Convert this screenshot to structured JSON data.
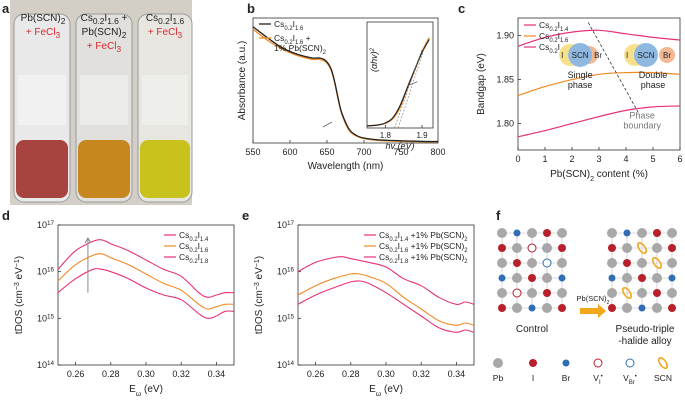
{
  "panels": {
    "a": {
      "label": "a",
      "vials": [
        {
          "line1": "Pb(SCN)",
          "sub1": "2",
          "line2": "",
          "line3": "+ FeCl",
          "sub3": "3",
          "liquid": "#a8443f"
        },
        {
          "line1": "Cs",
          "sub1": "0.2",
          "line1b": "I",
          "sub1b": "1.6",
          "plus": " +",
          "line2": "Pb(SCN)",
          "sub2": "2",
          "line3": "+ FeCl",
          "sub3": "3",
          "liquid": "#c7871f"
        },
        {
          "line1": "Cs",
          "sub1": "0.2",
          "line1b": "I",
          "sub1b": "1.6",
          "line2": "",
          "line3": "+ FeCl",
          "sub3": "3",
          "liquid": "#c9c21c"
        }
      ]
    },
    "b": {
      "label": "b"
    },
    "c": {
      "label": "c"
    },
    "d": {
      "label": "d"
    },
    "e": {
      "label": "e"
    },
    "f": {
      "label": "f",
      "control": "Control",
      "alloy": "Pseudo-triple-halide alloy",
      "arrow_label": "Pb(SCN)",
      "arrow_label_sub": "2",
      "legend": [
        "Pb",
        "I",
        "Br",
        "V",
        "V",
        "SCN"
      ],
      "legend_sub": [
        "",
        "",
        "",
        "I",
        "Br",
        ""
      ],
      "legend_sup": [
        "",
        "",
        "",
        "•",
        "•",
        ""
      ]
    }
  },
  "chart_data": [
    {
      "id": "b",
      "type": "line",
      "title": "",
      "xlabel": "Wavelength (nm)",
      "ylabel": "Absorbance (a.u.)",
      "xlim": [
        550,
        800
      ],
      "xticks": [
        550,
        600,
        650,
        700,
        750,
        800
      ],
      "legend": [
        {
          "name": "Cs0.2I1.6",
          "color": "#222222"
        },
        {
          "name": "Cs0.2I1.6 + 1% Pb(SCN)2",
          "color": "#f08a24"
        }
      ],
      "series": [
        {
          "name": "Cs0.2I1.6",
          "x": [
            550,
            570,
            590,
            610,
            630,
            640,
            648,
            655,
            660,
            665,
            670,
            680,
            690,
            700,
            720,
            740,
            760,
            780,
            800
          ],
          "y": [
            0.93,
            0.84,
            0.76,
            0.71,
            0.68,
            0.68,
            0.66,
            0.6,
            0.5,
            0.36,
            0.24,
            0.11,
            0.06,
            0.04,
            0.025,
            0.02,
            0.016,
            0.013,
            0.012
          ]
        },
        {
          "name": "Cs0.2I1.6 + 1% Pb(SCN)2",
          "x": [
            550,
            570,
            590,
            610,
            630,
            640,
            648,
            655,
            660,
            665,
            670,
            680,
            690,
            700,
            720,
            740,
            760,
            780,
            800
          ],
          "y": [
            0.91,
            0.82,
            0.75,
            0.7,
            0.67,
            0.67,
            0.65,
            0.59,
            0.49,
            0.35,
            0.23,
            0.1,
            0.055,
            0.035,
            0.02,
            0.015,
            0.012,
            0.01,
            0.009
          ]
        }
      ],
      "inset": {
        "xlabel": "hv (eV)",
        "ylabel": "(αhv)2",
        "xticks": [
          1.8,
          1.9
        ],
        "xlim": [
          1.75,
          1.93
        ],
        "series": [
          {
            "name": "Cs0.2I1.6",
            "x": [
              1.75,
              1.78,
              1.8,
              1.82,
              1.84,
              1.86,
              1.88,
              1.9,
              1.92
            ],
            "y": [
              0.02,
              0.03,
              0.05,
              0.1,
              0.22,
              0.4,
              0.58,
              0.75,
              0.88
            ]
          },
          {
            "name": "Cs0.2I1.6 + 1% Pb(SCN)2",
            "x": [
              1.75,
              1.78,
              1.8,
              1.82,
              1.84,
              1.86,
              1.88,
              1.9,
              1.92
            ],
            "y": [
              0.02,
              0.03,
              0.045,
              0.09,
              0.2,
              0.39,
              0.57,
              0.76,
              0.9
            ]
          }
        ]
      }
    },
    {
      "id": "c",
      "type": "line",
      "xlabel": "Pb(SCN)2 content (%)",
      "ylabel": "Bandgap (eV)",
      "xlim": [
        0,
        6
      ],
      "ylim": [
        1.77,
        1.92
      ],
      "xticks": [
        0,
        1,
        2,
        3,
        4,
        5,
        6
      ],
      "yticks": [
        1.8,
        1.85,
        1.9
      ],
      "legend": [
        "Cs0.2I1.4",
        "Cs0.2I1.6",
        "Cs0.2I1.8"
      ],
      "series": [
        {
          "name": "Cs0.2I1.4",
          "x": [
            0,
            1,
            2,
            3,
            4,
            5,
            6
          ],
          "y": [
            1.888,
            1.898,
            1.904,
            1.906,
            1.902,
            1.898,
            1.895
          ]
        },
        {
          "name": "Cs0.2I1.6",
          "x": [
            0,
            1,
            2,
            3,
            4,
            5,
            6
          ],
          "y": [
            1.832,
            1.842,
            1.85,
            1.856,
            1.858,
            1.858,
            1.856
          ]
        },
        {
          "name": "Cs0.2I1.8",
          "x": [
            0,
            1,
            2,
            3,
            4,
            5,
            6
          ],
          "y": [
            1.785,
            1.792,
            1.8,
            1.808,
            1.815,
            1.819,
            1.82
          ]
        }
      ],
      "annotations": {
        "single": "Single phase",
        "double": "Double phase",
        "boundary": "Phase boundary",
        "circles": [
          "I",
          "SCN",
          "Br"
        ]
      }
    },
    {
      "id": "d",
      "type": "line",
      "xlabel": "Eω (eV)",
      "ylabel": "tDOS (cm-3 eV-1)",
      "xlim": [
        0.25,
        0.35
      ],
      "xticks": [
        0.26,
        0.28,
        0.3,
        0.32,
        0.34
      ],
      "ylim_log": [
        14,
        17
      ],
      "legend": [
        "Cs0.2I1.4",
        "Cs0.2I1.6",
        "Cs0.2I1.8"
      ],
      "series": [
        {
          "name": "Cs0.2I1.4",
          "x": [
            0.25,
            0.26,
            0.27,
            0.275,
            0.28,
            0.29,
            0.3,
            0.31,
            0.32,
            0.33,
            0.335,
            0.34,
            0.345,
            0.35
          ],
          "y": [
            15.55,
            15.85,
            16.05,
            16.05,
            16.0,
            15.85,
            15.65,
            15.5,
            15.4,
            15.1,
            15.0,
            15.05,
            15.15,
            15.15
          ]
        },
        {
          "name": "Cs0.2I1.6",
          "x": [
            0.25,
            0.26,
            0.27,
            0.275,
            0.28,
            0.29,
            0.3,
            0.31,
            0.32,
            0.33,
            0.335,
            0.34,
            0.345,
            0.35
          ],
          "y": [
            15.8,
            16.15,
            16.35,
            16.38,
            16.3,
            16.15,
            15.95,
            15.75,
            15.6,
            15.3,
            15.2,
            15.25,
            15.3,
            15.3
          ]
        },
        {
          "name": "Cs0.2I1.8",
          "x": [
            0.25,
            0.26,
            0.27,
            0.275,
            0.28,
            0.29,
            0.3,
            0.31,
            0.32,
            0.33,
            0.335,
            0.34,
            0.345,
            0.35
          ],
          "y": [
            16.05,
            16.45,
            16.65,
            16.68,
            16.6,
            16.45,
            16.25,
            16.05,
            15.9,
            15.55,
            15.45,
            15.5,
            15.55,
            15.55
          ]
        }
      ]
    },
    {
      "id": "e",
      "type": "line",
      "xlabel": "Eω (eV)",
      "ylabel": "tDOS (cm-3 eV-1)",
      "xlim": [
        0.25,
        0.35
      ],
      "xticks": [
        0.26,
        0.28,
        0.3,
        0.32,
        0.34
      ],
      "ylim_log": [
        14,
        17
      ],
      "legend": [
        "Cs0.2I1.4 +1% Pb(SCN)2",
        "Cs0.2I1.6 +1% Pb(SCN)2",
        "Cs0.2I1.8 +1% Pb(SCN)2"
      ],
      "series": [
        {
          "name": "Cs0.2I1.4 +1% Pb(SCN)2",
          "x": [
            0.25,
            0.26,
            0.27,
            0.275,
            0.28,
            0.29,
            0.3,
            0.31,
            0.32,
            0.33,
            0.34,
            0.345,
            0.35
          ],
          "y": [
            16.0,
            16.2,
            16.3,
            16.32,
            16.28,
            16.2,
            16.1,
            15.85,
            15.7,
            15.45,
            15.3,
            15.35,
            15.3
          ]
        },
        {
          "name": "Cs0.2I1.6 +1% Pb(SCN)2",
          "x": [
            0.25,
            0.26,
            0.27,
            0.28,
            0.285,
            0.29,
            0.3,
            0.31,
            0.32,
            0.33,
            0.34,
            0.345,
            0.35
          ],
          "y": [
            15.5,
            15.7,
            15.85,
            15.95,
            15.95,
            15.9,
            15.75,
            15.45,
            15.2,
            14.95,
            14.85,
            14.9,
            14.85
          ]
        },
        {
          "name": "Cs0.2I1.8 +1% Pb(SCN)2",
          "x": [
            0.25,
            0.26,
            0.27,
            0.28,
            0.285,
            0.29,
            0.3,
            0.31,
            0.32,
            0.33,
            0.34,
            0.345,
            0.35
          ],
          "y": [
            15.3,
            15.5,
            15.65,
            15.78,
            15.8,
            15.75,
            15.55,
            15.3,
            15.05,
            14.8,
            14.7,
            14.75,
            14.7
          ]
        }
      ]
    }
  ],
  "colors": {
    "black": "#222222",
    "orange": "#f08a24",
    "magenta": "#e6307a",
    "blue": "#2f6db5",
    "red": "#b8202b",
    "grey": "#a8a8a8",
    "amber": "#f3a71b",
    "yellow": "#f8e08a",
    "lightblue": "#8fb8e0",
    "peach": "#f2b893"
  }
}
